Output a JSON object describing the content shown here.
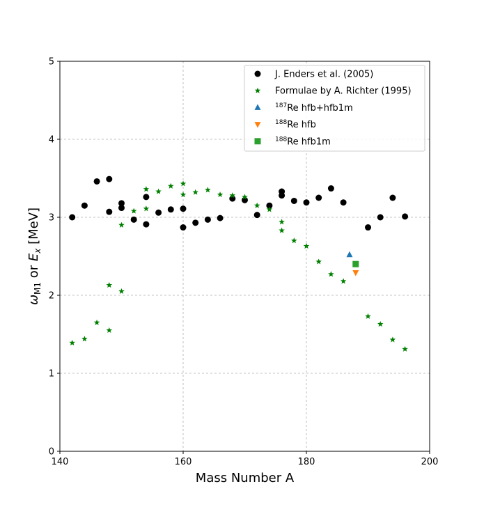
{
  "chart_data": {
    "type": "scatter",
    "xlabel": "Mass Number A",
    "ylabel_parts": {
      "omega": "ω",
      "omega_sub": "M1",
      "or": " or ",
      "e": "E",
      "e_sub": "x",
      "unit": " [MeV]"
    },
    "xlim": [
      140,
      200
    ],
    "ylim": [
      0,
      5
    ],
    "xticks": [
      140,
      160,
      180,
      200
    ],
    "yticks": [
      0,
      1,
      2,
      3,
      4,
      5
    ],
    "grid": true,
    "legend_position": "top-right",
    "series": [
      {
        "name": "J. Enders et al. (2005)",
        "marker": "circle",
        "color": "#000000",
        "points": [
          [
            142,
            3.0
          ],
          [
            144,
            3.15
          ],
          [
            146,
            3.46
          ],
          [
            148,
            3.49
          ],
          [
            148,
            3.07
          ],
          [
            150,
            3.18
          ],
          [
            150,
            3.12
          ],
          [
            152,
            2.97
          ],
          [
            154,
            3.26
          ],
          [
            154,
            2.91
          ],
          [
            156,
            3.06
          ],
          [
            158,
            3.1
          ],
          [
            160,
            3.11
          ],
          [
            160,
            2.87
          ],
          [
            162,
            2.93
          ],
          [
            164,
            2.97
          ],
          [
            166,
            2.99
          ],
          [
            168,
            3.24
          ],
          [
            170,
            3.22
          ],
          [
            172,
            3.03
          ],
          [
            174,
            3.15
          ],
          [
            176,
            3.33
          ],
          [
            176,
            3.28
          ],
          [
            178,
            3.21
          ],
          [
            180,
            3.19
          ],
          [
            182,
            3.25
          ],
          [
            184,
            3.37
          ],
          [
            186,
            3.19
          ],
          [
            190,
            2.87
          ],
          [
            192,
            3.0
          ],
          [
            194,
            3.25
          ],
          [
            196,
            3.01
          ]
        ]
      },
      {
        "name": "Formulae by A. Richter (1995)",
        "marker": "star",
        "color": "#008000",
        "points": [
          [
            142,
            1.39
          ],
          [
            144,
            1.44
          ],
          [
            146,
            1.65
          ],
          [
            148,
            2.13
          ],
          [
            148,
            1.55
          ],
          [
            150,
            2.05
          ],
          [
            150,
            2.9
          ],
          [
            152,
            3.08
          ],
          [
            154,
            3.36
          ],
          [
            154,
            3.11
          ],
          [
            156,
            3.33
          ],
          [
            158,
            3.4
          ],
          [
            160,
            3.43
          ],
          [
            160,
            3.29
          ],
          [
            162,
            3.32
          ],
          [
            164,
            3.35
          ],
          [
            166,
            3.29
          ],
          [
            168,
            3.28
          ],
          [
            170,
            3.26
          ],
          [
            172,
            3.15
          ],
          [
            174,
            3.1
          ],
          [
            176,
            2.94
          ],
          [
            176,
            2.83
          ],
          [
            178,
            2.7
          ],
          [
            180,
            2.63
          ],
          [
            182,
            2.43
          ],
          [
            184,
            2.27
          ],
          [
            186,
            2.18
          ],
          [
            190,
            1.73
          ],
          [
            192,
            1.63
          ],
          [
            194,
            1.43
          ],
          [
            196,
            1.31
          ]
        ]
      },
      {
        "name_sup": "187",
        "name": "Re hfb+hfb1m",
        "marker": "triangle-up",
        "color": "#1f77b4",
        "points": [
          [
            187,
            2.52
          ]
        ]
      },
      {
        "name_sup": "188",
        "name": "Re hfb",
        "marker": "triangle-down",
        "color": "#ff7f0e",
        "points": [
          [
            188,
            2.29
          ]
        ]
      },
      {
        "name_sup": "188",
        "name": "Re hfb1m",
        "marker": "square",
        "color": "#2ca02c",
        "points": [
          [
            188,
            2.4
          ]
        ]
      }
    ]
  }
}
